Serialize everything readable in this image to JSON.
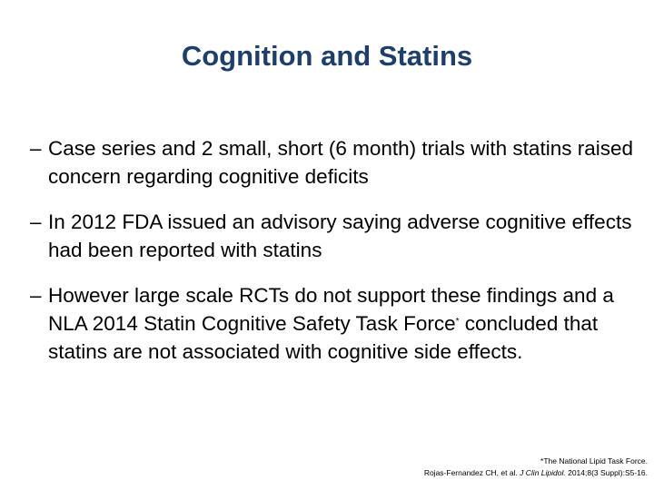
{
  "title": "Cognition and Statins",
  "bullets": [
    {
      "marker": "–",
      "text": "Case series and 2 small, short (6 month) trials with statins raised concern regarding cognitive deficits"
    },
    {
      "marker": "–",
      "text": "In 2012 FDA issued an advisory saying adverse cognitive effects had been reported with statins"
    },
    {
      "marker": "–",
      "text_before": "However large scale RCTs do not support these findings and a NLA 2014 Statin Cognitive Safety Task Force",
      "superscript": "*",
      "text_after": " concluded that statins are not associated with cognitive side effects."
    }
  ],
  "footnote": {
    "line1": "*The National Lipid Task Force.",
    "citation_authors": "Rojas-Fernandez CH, et al. ",
    "citation_journal": "J Clin Lipidol.",
    "citation_details": " 2014;8(3 Suppl):S5-16."
  },
  "colors": {
    "title": "#1f3f6b",
    "text": "#000000",
    "background": "#ffffff"
  }
}
